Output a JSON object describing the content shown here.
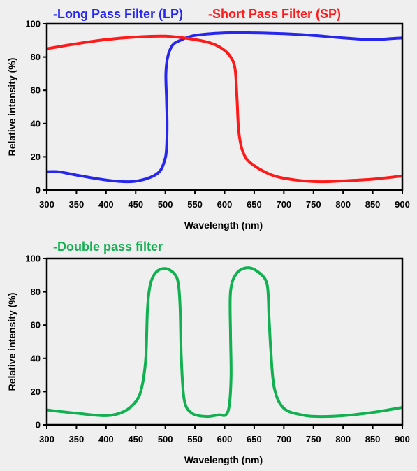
{
  "chart_data": [
    {
      "type": "line",
      "title": "",
      "xlabel": "Wavelength (nm)",
      "ylabel": "Relative intensity (%)",
      "xlim": [
        300,
        900
      ],
      "ylim": [
        0,
        100
      ],
      "x_ticks": [
        "300",
        "350",
        "400",
        "450",
        "500",
        "550",
        "600",
        "650",
        "700",
        "750",
        "800",
        "850",
        "900"
      ],
      "y_ticks": [
        "0",
        "20",
        "40",
        "60",
        "80",
        "100"
      ],
      "grid": false,
      "legend_position": "top",
      "series": [
        {
          "name": "-Long Pass Filter (LP)",
          "color": "#2626ee",
          "points": [
            [
              300,
              11
            ],
            [
              320,
              11
            ],
            [
              350,
              9
            ],
            [
              400,
              6
            ],
            [
              440,
              5
            ],
            [
              470,
              7
            ],
            [
              490,
              11
            ],
            [
              499,
              18
            ],
            [
              502,
              25
            ],
            [
              503,
              40
            ],
            [
              502,
              55
            ],
            [
              501,
              70
            ],
            [
              504,
              80
            ],
            [
              512,
              87
            ],
            [
              525,
              90
            ],
            [
              550,
              93
            ],
            [
              600,
              94.5
            ],
            [
              650,
              94.5
            ],
            [
              700,
              94
            ],
            [
              750,
              93
            ],
            [
              800,
              91.5
            ],
            [
              850,
              90.5
            ],
            [
              900,
              91.5
            ]
          ]
        },
        {
          "name": "-Short Pass Filter (SP)",
          "color": "#ff1a1a",
          "points": [
            [
              300,
              85
            ],
            [
              350,
              88
            ],
            [
              400,
              90.5
            ],
            [
              450,
              92
            ],
            [
              500,
              92.5
            ],
            [
              550,
              90.5
            ],
            [
              580,
              88
            ],
            [
              600,
              84
            ],
            [
              612,
              79
            ],
            [
              618,
              72
            ],
            [
              621,
              55
            ],
            [
              624,
              35
            ],
            [
              631,
              23
            ],
            [
              645,
              16
            ],
            [
              680,
              9
            ],
            [
              720,
              6
            ],
            [
              760,
              5
            ],
            [
              800,
              5.5
            ],
            [
              850,
              6.5
            ],
            [
              900,
              8.5
            ]
          ]
        }
      ]
    },
    {
      "type": "line",
      "title": "",
      "xlabel": "Wavelength (nm)",
      "ylabel": "Relative intensity (%)",
      "xlim": [
        300,
        900
      ],
      "ylim": [
        0,
        100
      ],
      "x_ticks": [
        "300",
        "350",
        "400",
        "450",
        "500",
        "550",
        "600",
        "650",
        "700",
        "750",
        "800",
        "850",
        "900"
      ],
      "y_ticks": [
        "0",
        "20",
        "40",
        "60",
        "80",
        "100"
      ],
      "grid": false,
      "legend_position": "top-left",
      "series": [
        {
          "name": "-Double pass filter",
          "color": "#11b050",
          "points": [
            [
              300,
              9
            ],
            [
              350,
              7
            ],
            [
              400,
              5.5
            ],
            [
              430,
              8
            ],
            [
              450,
              14
            ],
            [
              460,
              22
            ],
            [
              467,
              40
            ],
            [
              470,
              70
            ],
            [
              475,
              85
            ],
            [
              485,
              92
            ],
            [
              500,
              94
            ],
            [
              515,
              91
            ],
            [
              522,
              85
            ],
            [
              525,
              70
            ],
            [
              527,
              40
            ],
            [
              532,
              15
            ],
            [
              545,
              7
            ],
            [
              570,
              5
            ],
            [
              590,
              6
            ],
            [
              602,
              6
            ],
            [
              608,
              12
            ],
            [
              611,
              30
            ],
            [
              610,
              55
            ],
            [
              610,
              80
            ],
            [
              620,
              91
            ],
            [
              640,
              94.5
            ],
            [
              660,
              91
            ],
            [
              672,
              84
            ],
            [
              675,
              65
            ],
            [
              678,
              45
            ],
            [
              684,
              22
            ],
            [
              700,
              10
            ],
            [
              730,
              6
            ],
            [
              760,
              5
            ],
            [
              800,
              5.5
            ],
            [
              850,
              7.5
            ],
            [
              900,
              10.5
            ]
          ]
        }
      ]
    }
  ]
}
